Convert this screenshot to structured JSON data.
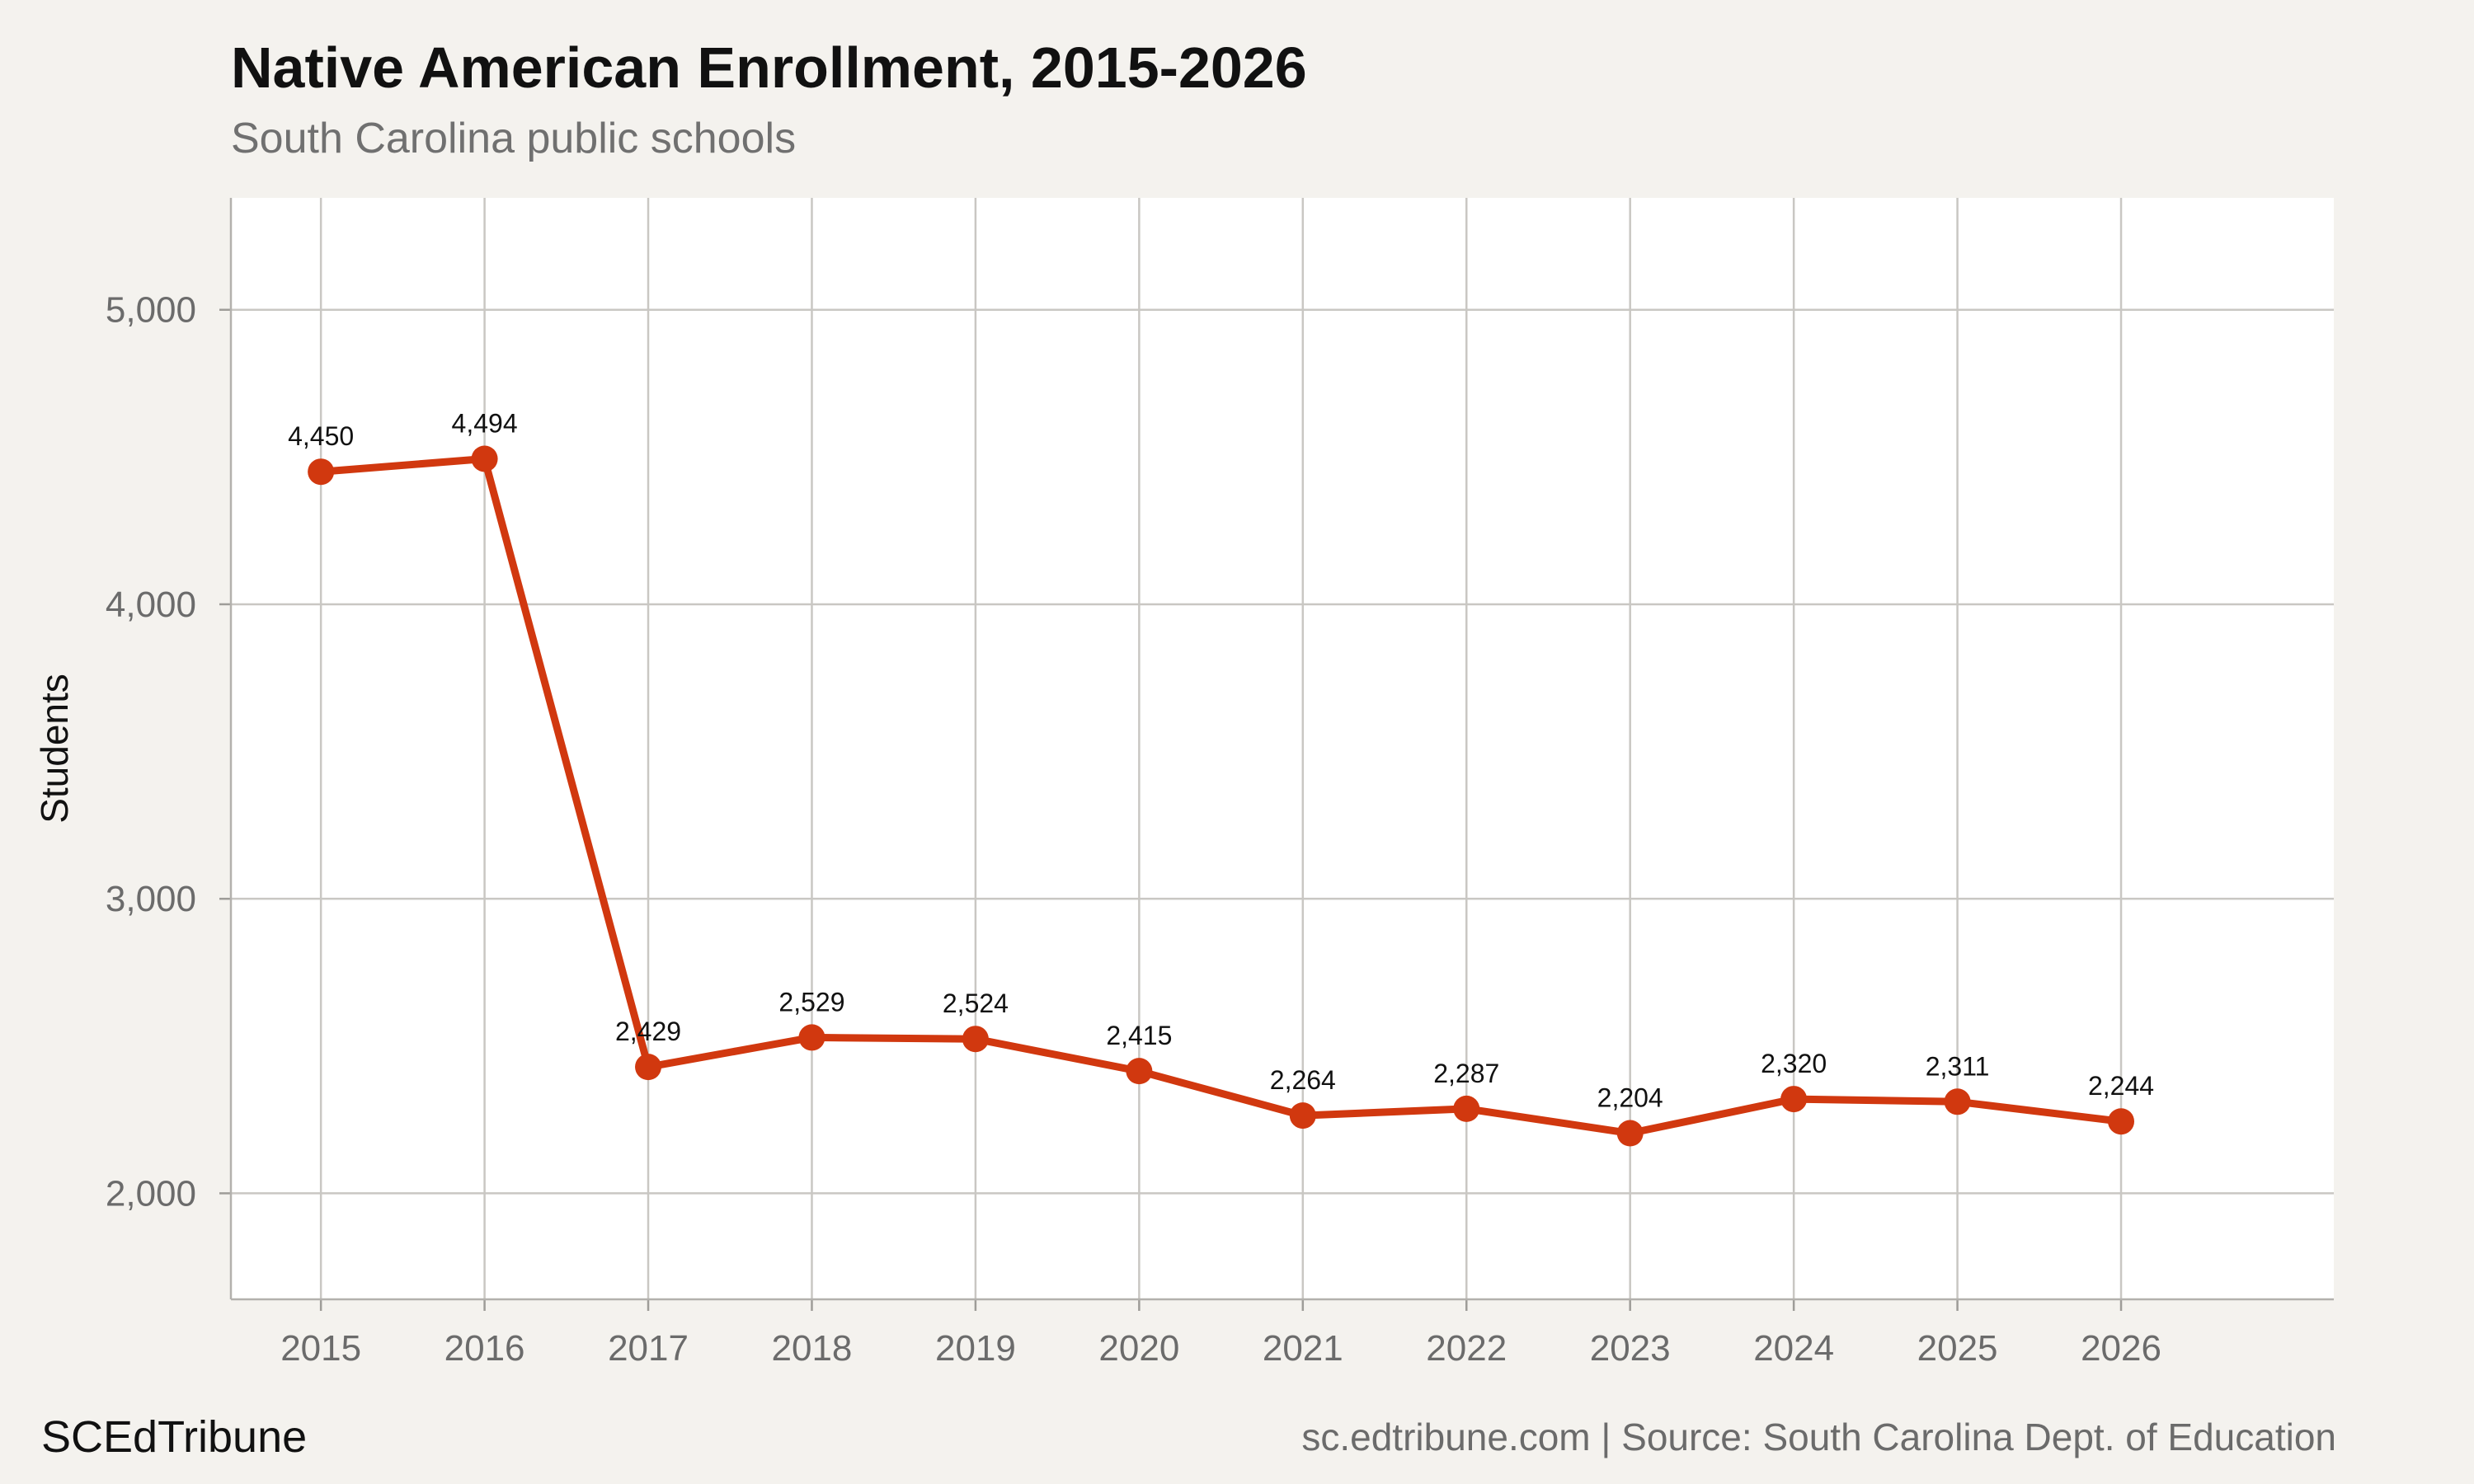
{
  "chart_data": {
    "type": "line",
    "title": "Native American Enrollment, 2015-2026",
    "subtitle": "South Carolina public schools",
    "xlabel": "",
    "ylabel": "Students",
    "x": [
      "2015",
      "2016",
      "2017",
      "2018",
      "2019",
      "2020",
      "2021",
      "2022",
      "2023",
      "2024",
      "2025",
      "2026"
    ],
    "values": [
      4450,
      4494,
      2429,
      2529,
      2524,
      2415,
      2264,
      2287,
      2204,
      2320,
      2311,
      2244
    ],
    "data_labels": [
      "4,450",
      "4,494",
      "2,429",
      "2,529",
      "2,524",
      "2,415",
      "2,264",
      "2,287",
      "2,204",
      "2,320",
      "2,311",
      "2,244"
    ],
    "yticks": [
      2000,
      3000,
      4000,
      5000
    ],
    "ytick_labels": [
      "2,000",
      "3,000",
      "4,000",
      "5,000"
    ],
    "ylim": [
      1640,
      5380
    ],
    "xlim": [
      2014.45,
      2027.3
    ],
    "grid": true,
    "legend": "none",
    "colors": {
      "line": "#d1380f",
      "panel": "#ffffff",
      "background": "#f4f2ee",
      "grid": "#c9c7c3"
    }
  },
  "footer": {
    "brand": "SCEdTribune",
    "source": "sc.edtribune.com | Source: South Carolina Dept. of Education"
  }
}
